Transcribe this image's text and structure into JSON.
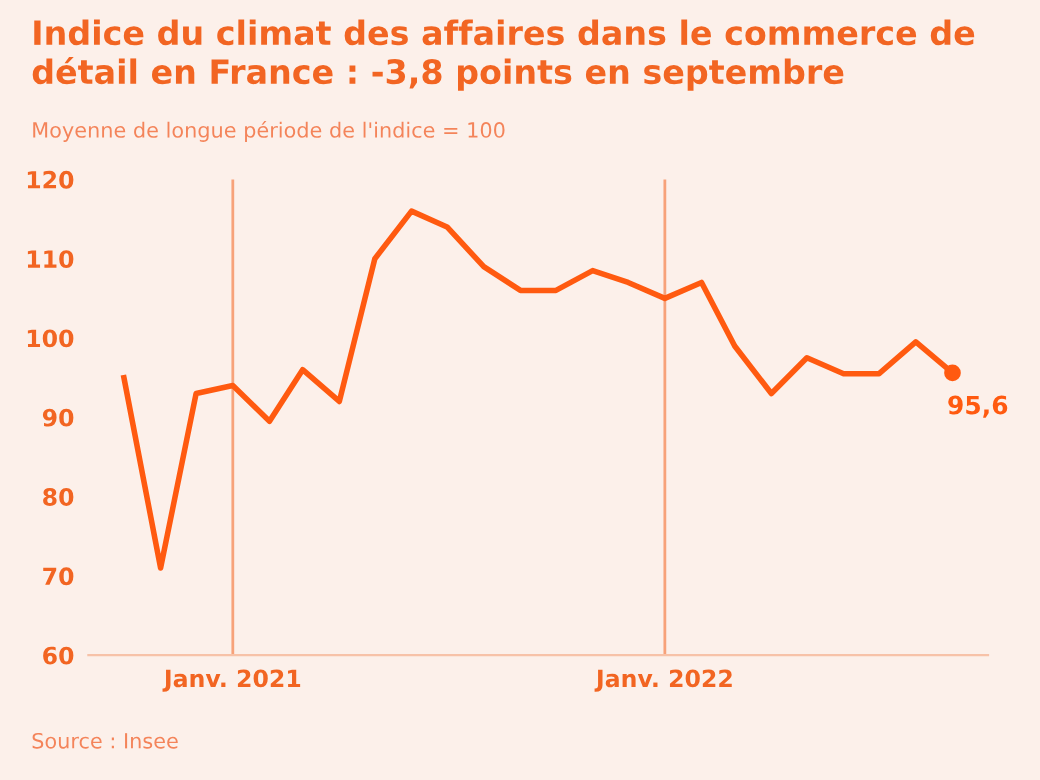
{
  "chart_data": {
    "type": "line",
    "title": "Indice du climat des affaires dans le commerce de détail en France : -3,8 points en septembre",
    "subtitle": "Moyenne de longue période de l'indice = 100",
    "x": [
      "2020-10",
      "2020-11",
      "2020-12",
      "2021-01",
      "2021-02",
      "2021-03",
      "2021-04",
      "2021-05",
      "2021-06",
      "2021-07",
      "2021-08",
      "2021-09",
      "2021-10",
      "2021-11",
      "2021-12",
      "2022-01",
      "2022-02",
      "2022-03",
      "2022-04",
      "2022-05",
      "2022-06",
      "2022-07",
      "2022-08",
      "2022-09"
    ],
    "series": [
      {
        "color": "#ff5a10",
        "values": [
          95,
          71,
          93,
          94,
          89.5,
          96,
          92,
          110,
          116,
          114,
          109,
          106,
          106,
          108.5,
          107,
          105,
          107,
          99,
          93,
          97.5,
          95.5,
          95.5,
          99.5,
          95.6
        ],
        "value_labels": [
          null,
          null,
          null,
          null,
          null,
          null,
          null,
          null,
          null,
          null,
          null,
          null,
          null,
          null,
          null,
          null,
          null,
          null,
          null,
          null,
          null,
          null,
          null,
          "95,6"
        ]
      }
    ],
    "xlim": [
      "2020-09",
      "2022-10"
    ],
    "xticks": [
      {
        "value": "2021-01",
        "label": "Janv. 2021"
      },
      {
        "value": "2022-01",
        "label": "Janv. 2022"
      }
    ],
    "ylim": [
      60,
      120
    ],
    "yticks": [
      60,
      70,
      80,
      90,
      100,
      110,
      120
    ],
    "grid": "x",
    "legend": false,
    "marker": "none",
    "line_style": "solid",
    "annotations": [
      "Source : Insee"
    ]
  }
}
